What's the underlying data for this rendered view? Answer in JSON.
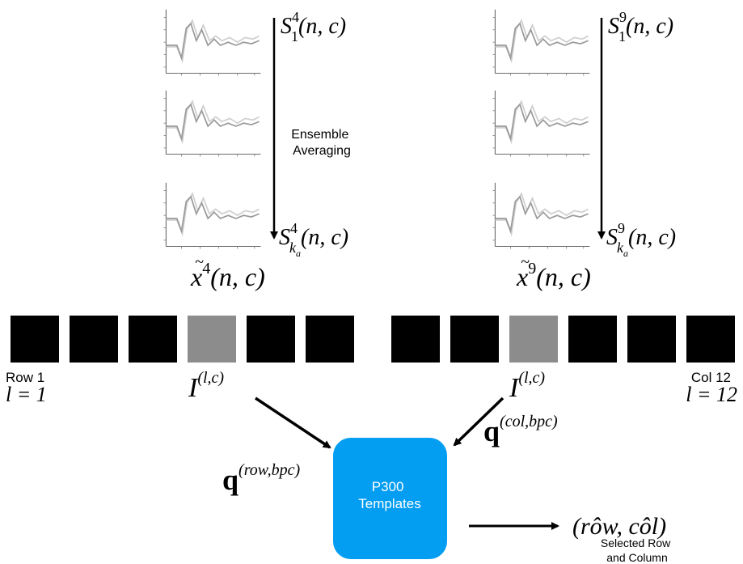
{
  "left_stack": {
    "top_label": {
      "base": "S",
      "sub": "1",
      "sup": "4",
      "args": "(n, c)"
    },
    "bottom_label": {
      "base": "S",
      "sub": "k",
      "subsub": "a",
      "sup": "4",
      "args": "(n, c)"
    },
    "avg_label": {
      "base": "x",
      "tilde": "~",
      "sup": "4",
      "args": "(n, c)"
    },
    "annotation_line1": "Ensemble",
    "annotation_line2": "Averaging"
  },
  "right_stack": {
    "top_label": {
      "base": "S",
      "sub": "1",
      "sup": "9",
      "args": "(n, c)"
    },
    "bottom_label": {
      "base": "S",
      "sub": "k",
      "subsub": "a",
      "sup": "9",
      "args": "(n, c)"
    },
    "avg_label": {
      "base": "x",
      "tilde": "~",
      "sup": "9",
      "args": "(n, c)"
    }
  },
  "row_label": {
    "line1": "Row 1",
    "line2": "l = 1"
  },
  "col_label": {
    "line1": "Col 12",
    "line2": "l = 12"
  },
  "intensity_left": {
    "base": "I",
    "sup": "(l,c)"
  },
  "intensity_right": {
    "base": "I",
    "sup": "(l,c)"
  },
  "q_row": {
    "base": "q",
    "sup": "(row,bpc)"
  },
  "q_col": {
    "base": "q",
    "sup": "(col,bpc)"
  },
  "templates_box": {
    "line1": "P300",
    "line2": "Templates",
    "color": "#039df2"
  },
  "output_label": "(rôw, côl)",
  "selected_line1": "Selected Row",
  "selected_line2": "and Column",
  "colors": {
    "flash_off": "#000000",
    "flash_on": "#8c8c8c"
  }
}
